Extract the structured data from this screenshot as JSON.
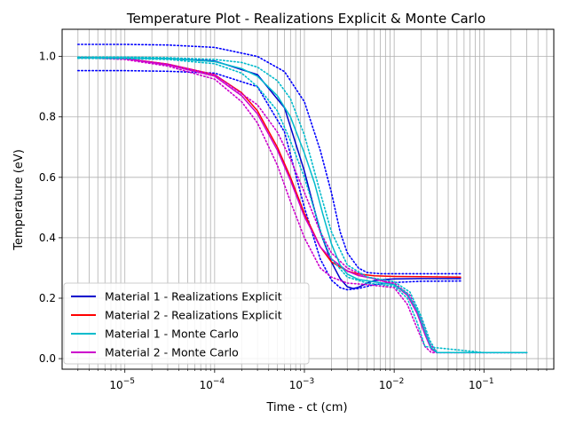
{
  "chart_data": {
    "type": "line",
    "title": "Temperature Plot - Realizations Explicit & Monte Carlo",
    "xlabel": "Time - ct (cm)",
    "ylabel": "Temperature (eV)",
    "xscale": "log",
    "xlim": [
      2e-06,
      0.6
    ],
    "ylim": [
      -0.035,
      1.09
    ],
    "grid": "on",
    "legend_position": "lower-left",
    "x_ticks": [
      {
        "value": 1e-05,
        "label": "10",
        "exp": "−5"
      },
      {
        "value": 0.0001,
        "label": "10",
        "exp": "−4"
      },
      {
        "value": 0.001,
        "label": "10",
        "exp": "−3"
      },
      {
        "value": 0.01,
        "label": "10",
        "exp": "−2"
      },
      {
        "value": 0.1,
        "label": "10",
        "exp": "−1"
      }
    ],
    "y_ticks": [
      {
        "value": 0.0,
        "label": "0.0"
      },
      {
        "value": 0.2,
        "label": "0.2"
      },
      {
        "value": 0.4,
        "label": "0.4"
      },
      {
        "value": 0.6,
        "label": "0.6"
      },
      {
        "value": 0.8,
        "label": "0.8"
      },
      {
        "value": 1.0,
        "label": "1.0"
      }
    ],
    "grid_x": [
      3e-06,
      4e-06,
      5e-06,
      6e-06,
      7e-06,
      8e-06,
      9e-06,
      2e-05,
      3e-05,
      4e-05,
      5e-05,
      6e-05,
      7e-05,
      8e-05,
      9e-05,
      0.0002,
      0.0003,
      0.0004,
      0.0005,
      0.0006,
      0.0007,
      0.0008,
      0.0009,
      0.002,
      0.003,
      0.004,
      0.005,
      0.006,
      0.007,
      0.008,
      0.009,
      0.02,
      0.03,
      0.04,
      0.05,
      0.06,
      0.07,
      0.08,
      0.09,
      0.2,
      0.3,
      0.4,
      0.5
    ],
    "series": [
      {
        "name": "Material 1 - Realizations Explicit",
        "color": "#0000cc",
        "style": "solid",
        "x": [
          3e-06,
          1e-05,
          3e-05,
          0.0001,
          0.0003,
          0.0006,
          0.001,
          0.0015,
          0.002,
          0.0025,
          0.003,
          0.0035,
          0.004,
          0.005,
          0.006,
          0.008,
          0.01,
          0.02,
          0.055
        ],
        "y": [
          0.995,
          0.995,
          0.993,
          0.985,
          0.94,
          0.83,
          0.62,
          0.42,
          0.32,
          0.265,
          0.238,
          0.232,
          0.236,
          0.25,
          0.258,
          0.262,
          0.264,
          0.265,
          0.265
        ]
      },
      {
        "name": "Material 1 - Realizations Explicit",
        "color": "#0000ff",
        "style": "dotted",
        "x": [
          3e-06,
          1e-05,
          3e-05,
          0.0001,
          0.0003,
          0.0006,
          0.001,
          0.0015,
          0.002,
          0.0025,
          0.003,
          0.004,
          0.005,
          0.007,
          0.01,
          0.02,
          0.055
        ],
        "y": [
          1.04,
          1.04,
          1.038,
          1.03,
          1.0,
          0.95,
          0.85,
          0.69,
          0.55,
          0.42,
          0.35,
          0.3,
          0.285,
          0.281,
          0.281,
          0.281,
          0.281
        ]
      },
      {
        "name": "Material 1 - Realizations Explicit",
        "color": "#0000ff",
        "style": "dotted",
        "x": [
          3e-06,
          1e-05,
          3e-05,
          0.0001,
          0.0003,
          0.0006,
          0.001,
          0.0015,
          0.002,
          0.0025,
          0.003,
          0.004,
          0.006,
          0.01,
          0.02,
          0.055
        ],
        "y": [
          0.953,
          0.953,
          0.951,
          0.945,
          0.9,
          0.75,
          0.5,
          0.33,
          0.26,
          0.235,
          0.228,
          0.232,
          0.245,
          0.252,
          0.256,
          0.257
        ]
      },
      {
        "name": "Material 2 - Realizations Explicit",
        "color": "#ff0000",
        "style": "solid",
        "x": [
          3e-06,
          1e-05,
          3e-05,
          0.0001,
          0.0002,
          0.0003,
          0.0005,
          0.0007,
          0.001,
          0.0015,
          0.002,
          0.003,
          0.004,
          0.006,
          0.01,
          0.02,
          0.055
        ],
        "y": [
          0.997,
          0.993,
          0.975,
          0.94,
          0.88,
          0.82,
          0.7,
          0.6,
          0.48,
          0.37,
          0.32,
          0.29,
          0.28,
          0.274,
          0.272,
          0.271,
          0.27
        ]
      },
      {
        "name": "Material 2 - Monte Carlo",
        "color": "#cc00cc",
        "style": "solid",
        "x": [
          3e-06,
          1e-05,
          3e-05,
          0.0001,
          0.0002,
          0.0003,
          0.0005,
          0.0007,
          0.001,
          0.0015,
          0.002,
          0.003,
          0.004,
          0.006,
          0.01,
          0.014,
          0.018,
          0.022,
          0.026,
          0.03,
          0.04,
          0.1,
          0.3
        ],
        "y": [
          0.997,
          0.993,
          0.972,
          0.935,
          0.87,
          0.81,
          0.69,
          0.59,
          0.47,
          0.37,
          0.33,
          0.29,
          0.275,
          0.265,
          0.245,
          0.21,
          0.15,
          0.08,
          0.03,
          0.02,
          0.02,
          0.02,
          0.02
        ]
      },
      {
        "name": "Material 2 - Monte Carlo",
        "color": "#cc00cc",
        "style": "dotted",
        "x": [
          3e-06,
          1e-05,
          3e-05,
          0.0001,
          0.0003,
          0.0005,
          0.0007,
          0.001,
          0.0015,
          0.002,
          0.003,
          0.005,
          0.01,
          0.015,
          0.02,
          0.025,
          0.03,
          0.1,
          0.3
        ],
        "y": [
          0.997,
          0.993,
          0.975,
          0.94,
          0.84,
          0.75,
          0.66,
          0.55,
          0.42,
          0.35,
          0.3,
          0.27,
          0.25,
          0.21,
          0.13,
          0.05,
          0.02,
          0.02,
          0.02
        ]
      },
      {
        "name": "Material 2 - Monte Carlo",
        "color": "#cc00cc",
        "style": "dotted",
        "x": [
          3e-06,
          1e-05,
          3e-05,
          0.0001,
          0.0002,
          0.0003,
          0.0005,
          0.0007,
          0.001,
          0.0015,
          0.002,
          0.003,
          0.005,
          0.01,
          0.014,
          0.018,
          0.022,
          0.026,
          0.1,
          0.3
        ],
        "y": [
          0.997,
          0.99,
          0.968,
          0.925,
          0.85,
          0.78,
          0.64,
          0.52,
          0.4,
          0.3,
          0.27,
          0.25,
          0.245,
          0.235,
          0.18,
          0.1,
          0.04,
          0.02,
          0.02,
          0.02
        ]
      },
      {
        "name": "Material 1 - Monte Carlo",
        "color": "#00bbcc",
        "style": "solid",
        "x": [
          3e-06,
          1e-05,
          3e-05,
          0.0001,
          0.0002,
          0.0003,
          0.0005,
          0.0007,
          0.001,
          0.0013,
          0.0016,
          0.002,
          0.0025,
          0.003,
          0.004,
          0.006,
          0.01,
          0.014,
          0.018,
          0.022,
          0.026,
          0.03,
          0.04,
          0.1,
          0.3
        ],
        "y": [
          0.996,
          0.996,
          0.993,
          0.983,
          0.96,
          0.935,
          0.87,
          0.8,
          0.68,
          0.58,
          0.48,
          0.38,
          0.31,
          0.28,
          0.262,
          0.254,
          0.245,
          0.215,
          0.16,
          0.09,
          0.035,
          0.02,
          0.02,
          0.02,
          0.02
        ]
      },
      {
        "name": "Material 1 - Monte Carlo",
        "color": "#00bbcc",
        "style": "dotted",
        "x": [
          3e-06,
          1e-05,
          3e-05,
          0.0001,
          0.0002,
          0.0003,
          0.0005,
          0.0007,
          0.001,
          0.0015,
          0.002,
          0.003,
          0.005,
          0.01,
          0.015,
          0.02,
          0.025,
          0.03,
          0.1,
          0.3
        ],
        "y": [
          0.998,
          0.998,
          0.996,
          0.99,
          0.98,
          0.965,
          0.92,
          0.86,
          0.74,
          0.55,
          0.42,
          0.31,
          0.27,
          0.255,
          0.22,
          0.14,
          0.06,
          0.02,
          0.02,
          0.02
        ]
      },
      {
        "name": "Material 1 - Monte Carlo",
        "color": "#00bbcc",
        "style": "dotted",
        "x": [
          3e-06,
          1e-05,
          3e-05,
          0.0001,
          0.0002,
          0.0003,
          0.0005,
          0.0007,
          0.001,
          0.0013,
          0.0016,
          0.002,
          0.003,
          0.005,
          0.01,
          0.014,
          0.018,
          0.022,
          0.1,
          0.3
        ],
        "y": [
          0.994,
          0.993,
          0.99,
          0.976,
          0.945,
          0.9,
          0.82,
          0.72,
          0.6,
          0.49,
          0.4,
          0.33,
          0.27,
          0.25,
          0.24,
          0.2,
          0.12,
          0.04,
          0.02,
          0.02
        ]
      }
    ],
    "legend": [
      {
        "label": "Material 1 - Realizations Explicit",
        "color": "#0000cc"
      },
      {
        "label": "Material 2 - Realizations Explicit",
        "color": "#ff0000"
      },
      {
        "label": "Material 1 - Monte Carlo",
        "color": "#00bbcc"
      },
      {
        "label": "Material 2 - Monte Carlo",
        "color": "#cc00cc"
      }
    ]
  }
}
